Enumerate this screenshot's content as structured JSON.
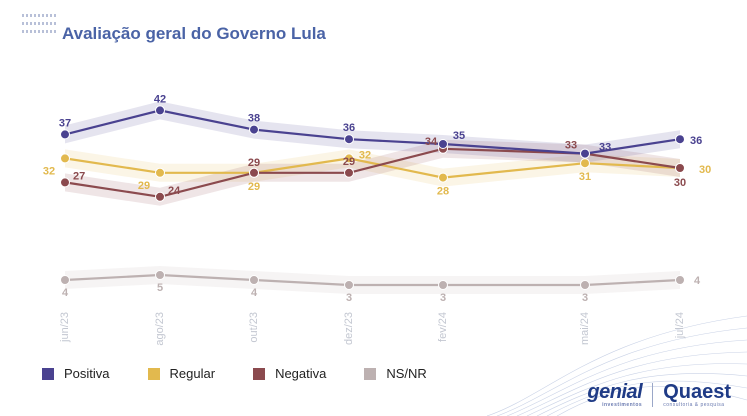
{
  "title": "Avaliação geral do Governo Lula",
  "chart_data": {
    "type": "line",
    "title": "Avaliação geral do Governo Lula",
    "categories": [
      "jun/23",
      "ago/23",
      "out/23",
      "dez/23",
      "fev/24",
      "mai/24",
      "jul/24"
    ],
    "series": [
      {
        "name": "Positiva",
        "color": "#4a4290",
        "values": [
          37,
          42,
          38,
          36,
          35,
          33,
          36
        ]
      },
      {
        "name": "Regular",
        "color": "#e2b94e",
        "values": [
          32,
          29,
          29,
          32,
          28,
          31,
          30
        ]
      },
      {
        "name": "Negativa",
        "color": "#8b4a4e",
        "values": [
          27,
          24,
          29,
          29,
          34,
          33,
          30
        ]
      },
      {
        "name": "NS/NR",
        "color": "#bdb1b1",
        "values": [
          4,
          5,
          4,
          3,
          3,
          3,
          4
        ]
      }
    ],
    "grid": false,
    "legend": "bottom-left"
  },
  "legend": [
    {
      "label": "Positiva",
      "color": "#4a4290"
    },
    {
      "label": "Regular",
      "color": "#e2b94e"
    },
    {
      "label": "Negativa",
      "color": "#8b4a4e"
    },
    {
      "label": "NS/NR",
      "color": "#bdb1b1"
    }
  ],
  "logos": {
    "genial": "genial",
    "genial_sub": "investimentos",
    "quaest": "Quaest",
    "quaest_sub": "consultoria & pesquisa"
  }
}
